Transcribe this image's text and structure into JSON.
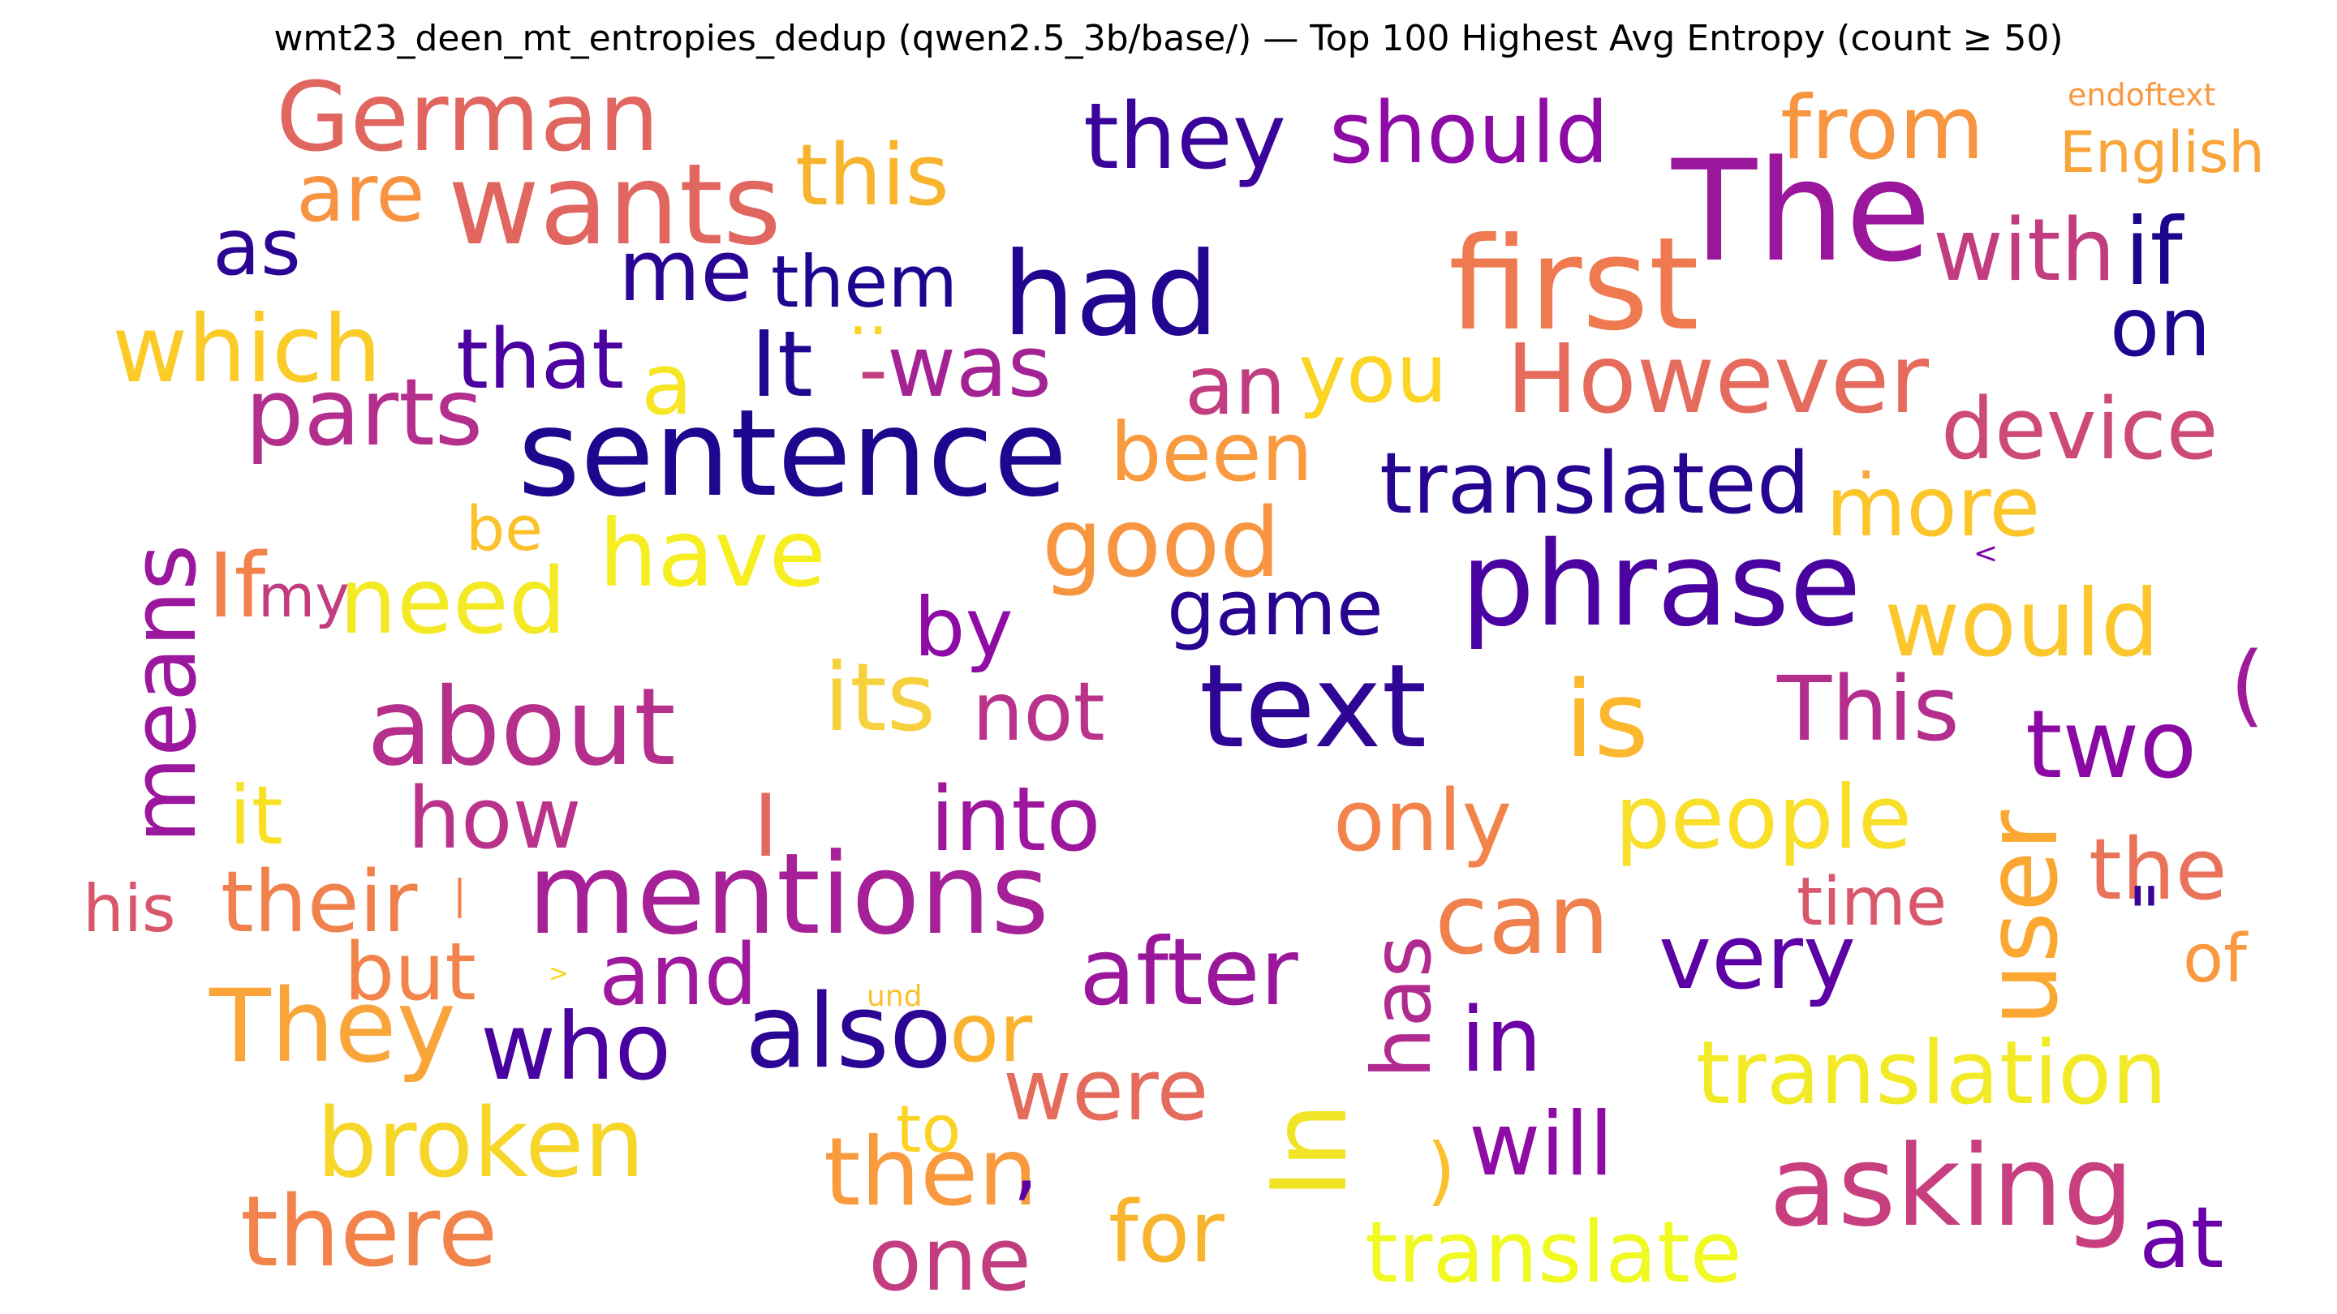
{
  "title": "wmt23_deen_mt_entropies_dedup (qwen2.5_3b/base/) — Top 100 Highest Avg Entropy (count ≥ 50)",
  "chart_data": {
    "type": "wordcloud",
    "colormap": "plasma",
    "words": [
      {
        "text": "German",
        "color": "#e0665f"
      },
      {
        "text": "wants",
        "color": "#e0665f"
      },
      {
        "text": "they",
        "color": "#3a049a"
      },
      {
        "text": "should",
        "color": "#8e0ba5"
      },
      {
        "text": "from",
        "color": "#f89540"
      },
      {
        "text": "endoftext",
        "color": "#f9983e"
      },
      {
        "text": "English",
        "color": "#f9a53a"
      },
      {
        "text": "this",
        "color": "#f9b42e"
      },
      {
        "text": "are",
        "color": "#f89441"
      },
      {
        "text": "The",
        "color": "#9a179b"
      },
      {
        "text": "as",
        "color": "#2c0594"
      },
      {
        "text": "had",
        "color": "#220690"
      },
      {
        "text": "first",
        "color": "#ef7a4f"
      },
      {
        "text": "with",
        "color": "#c13d80"
      },
      {
        "text": "if",
        "color": "#1a068c"
      },
      {
        "text": "me",
        "color": "#2a0593"
      },
      {
        "text": "them",
        "color": "#1e0690"
      },
      {
        "text": "which",
        "color": "#fbcc27"
      },
      {
        "text": "that",
        "color": "#4c02a1"
      },
      {
        "text": "It",
        "color": "#200690"
      },
      {
        "text": "..",
        "color": "#fbd424"
      },
      {
        "text": "on",
        "color": "#1c068e"
      },
      {
        "text": "a",
        "color": "#f6e626"
      },
      {
        "text": "-",
        "color": "#c33d80"
      },
      {
        "text": "was",
        "color": "#a52294"
      },
      {
        "text": "an",
        "color": "#c13d80"
      },
      {
        "text": "you",
        "color": "#fbd424"
      },
      {
        "text": "However",
        "color": "#e56b5d"
      },
      {
        "text": "parts",
        "color": "#b42e8d"
      },
      {
        "text": "sentence",
        "color": "#1f068f"
      },
      {
        "text": "device",
        "color": "#cd4a76"
      },
      {
        "text": "been",
        "color": "#f99a3e"
      },
      {
        "text": "translated",
        "color": "#260591"
      },
      {
        "text": ".",
        "color": "#f9a53a"
      },
      {
        "text": "more",
        "color": "#fcc52a"
      },
      {
        "text": "be",
        "color": "#fcc12a"
      },
      {
        "text": "have",
        "color": "#f6ee21"
      },
      {
        "text": "good",
        "color": "#f89540"
      },
      {
        "text": "phrase",
        "color": "#4a02a0"
      },
      {
        "text": "<",
        "color": "#7e03a8"
      },
      {
        "text": "means",
        "color": "#9b179e"
      },
      {
        "text": "If",
        "color": "#f2824a"
      },
      {
        "text": "my",
        "color": "#c13d80"
      },
      {
        "text": "need",
        "color": "#f4e925"
      },
      {
        "text": "game",
        "color": "#270591"
      },
      {
        "text": "would",
        "color": "#fbc72c"
      },
      {
        "text": "by",
        "color": "#8e0ba5"
      },
      {
        "text": "(",
        "color": "#a01a9c"
      },
      {
        "text": "about",
        "color": "#b52f8c"
      },
      {
        "text": "its",
        "color": "#f7d13d"
      },
      {
        "text": "not",
        "color": "#b9338a"
      },
      {
        "text": "text",
        "color": "#2e0595"
      },
      {
        "text": "is",
        "color": "#fbb72e"
      },
      {
        "text": "This",
        "color": "#b42e8d"
      },
      {
        "text": "two",
        "color": "#8a09a5"
      },
      {
        "text": "it",
        "color": "#f8e125"
      },
      {
        "text": "how",
        "color": "#b9338a"
      },
      {
        "text": "I",
        "color": "#e3685f"
      },
      {
        "text": "into",
        "color": "#9c179e"
      },
      {
        "text": "only",
        "color": "#f2844b"
      },
      {
        "text": "people",
        "color": "#f9de2a"
      },
      {
        "text": "user",
        "color": "#fba833"
      },
      {
        "text": "the",
        "color": "#e9725b"
      },
      {
        "text": "his",
        "color": "#d8576b"
      },
      {
        "text": "their",
        "color": "#f0804c"
      },
      {
        "text": "|",
        "color": "#f2844b"
      },
      {
        "text": "mentions",
        "color": "#a62098"
      },
      {
        "text": "time",
        "color": "#d8576b"
      },
      {
        "text": "can",
        "color": "#f0804c"
      },
      {
        "text": "\"",
        "color": "#3a049a"
      },
      {
        "text": "of",
        "color": "#f9983e"
      },
      {
        "text": "but",
        "color": "#f2844b"
      },
      {
        "text": ">",
        "color": "#fbd424"
      },
      {
        "text": "and",
        "color": "#9e199d"
      },
      {
        "text": "has",
        "color": "#b12a90"
      },
      {
        "text": "very",
        "color": "#5c01a6"
      },
      {
        "text": "after",
        "color": "#9a179b"
      },
      {
        "text": "They",
        "color": "#f9a53a"
      },
      {
        "text": "und",
        "color": "#fbc12a"
      },
      {
        "text": "who",
        "color": "#4902a0"
      },
      {
        "text": "also",
        "color": "#2b0594"
      },
      {
        "text": "or",
        "color": "#fbb32f"
      },
      {
        "text": "in",
        "color": "#6e00a8"
      },
      {
        "text": "translation",
        "color": "#f3ea27"
      },
      {
        "text": "were",
        "color": "#e56b5d"
      },
      {
        "text": "to",
        "color": "#fcd225"
      },
      {
        "text": "In",
        "color": "#f1e425"
      },
      {
        "text": "broken",
        "color": "#f7d62a"
      },
      {
        "text": ")",
        "color": "#fbc12a"
      },
      {
        "text": "will",
        "color": "#8e0ba5"
      },
      {
        "text": "asking",
        "color": "#c83f7f"
      },
      {
        "text": "then",
        "color": "#f99a3e"
      },
      {
        "text": ",",
        "color": "#5c01a6"
      },
      {
        "text": "there",
        "color": "#f2844b"
      },
      {
        "text": "for",
        "color": "#f9b42e"
      },
      {
        "text": "one",
        "color": "#c13d80"
      },
      {
        "text": "translate",
        "color": "#f0f921"
      },
      {
        "text": "at",
        "color": "#6a00a8"
      }
    ]
  }
}
